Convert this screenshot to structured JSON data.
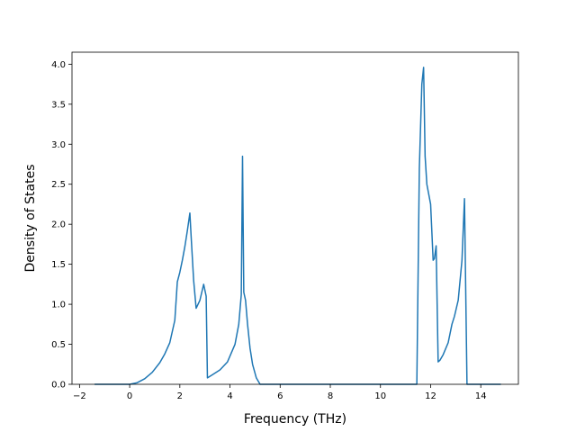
{
  "chart_data": {
    "type": "line",
    "title": "",
    "xlabel": "Frequency (THz)",
    "ylabel": "Density of States",
    "xlim": [
      -2.3,
      15.5
    ],
    "ylim": [
      0,
      4.15
    ],
    "xticks": [
      -2,
      0,
      2,
      4,
      6,
      8,
      10,
      12,
      14
    ],
    "xtick_labels": [
      "−2",
      "0",
      "2",
      "4",
      "6",
      "8",
      "10",
      "12",
      "14"
    ],
    "yticks": [
      0.0,
      0.5,
      1.0,
      1.5,
      2.0,
      2.5,
      3.0,
      3.5,
      4.0
    ],
    "ytick_labels": [
      "0.0",
      "0.5",
      "1.0",
      "1.5",
      "2.0",
      "2.5",
      "3.0",
      "3.5",
      "4.0"
    ],
    "grid": false,
    "legend": "none",
    "series": [
      {
        "color": "#1f77b4",
        "x": [
          -1.4,
          -0.5,
          0,
          0.3,
          0.6,
          0.9,
          1.2,
          1.4,
          1.6,
          1.8,
          1.9,
          2.0,
          2.1,
          2.2,
          2.3,
          2.4,
          2.45,
          2.55,
          2.65,
          2.8,
          2.95,
          3.05,
          3.1,
          3.3,
          3.6,
          3.9,
          4.2,
          4.35,
          4.45,
          4.5,
          4.55,
          4.62,
          4.7,
          4.8,
          4.9,
          5.05,
          5.2,
          5.3,
          6,
          8,
          10,
          11.3,
          11.45,
          11.55,
          11.65,
          11.72,
          11.78,
          11.85,
          12.0,
          12.1,
          12.15,
          12.22,
          12.3,
          12.37,
          12.5,
          12.7,
          12.85,
          12.95,
          13.1,
          13.25,
          13.35,
          13.45,
          13.5,
          13.55,
          13.6,
          13.7,
          14.0,
          14.5,
          14.8
        ],
        "y": [
          0.0,
          0.0,
          0.0,
          0.02,
          0.07,
          0.15,
          0.27,
          0.38,
          0.52,
          0.8,
          1.28,
          1.4,
          1.55,
          1.72,
          1.92,
          2.14,
          1.85,
          1.3,
          0.95,
          1.05,
          1.25,
          1.1,
          0.08,
          0.12,
          0.18,
          0.28,
          0.5,
          0.75,
          1.12,
          2.85,
          1.15,
          1.05,
          0.75,
          0.45,
          0.25,
          0.08,
          0.0,
          0.0,
          0.0,
          0.0,
          0.0,
          0.0,
          0.0,
          2.7,
          3.75,
          3.96,
          2.85,
          2.5,
          2.25,
          1.55,
          1.57,
          1.73,
          0.28,
          0.3,
          0.37,
          0.52,
          0.75,
          0.85,
          1.05,
          1.55,
          2.32,
          0.0,
          0.0,
          0.0,
          0.0,
          0.0,
          0.0,
          0.0,
          0.0
        ]
      }
    ]
  }
}
